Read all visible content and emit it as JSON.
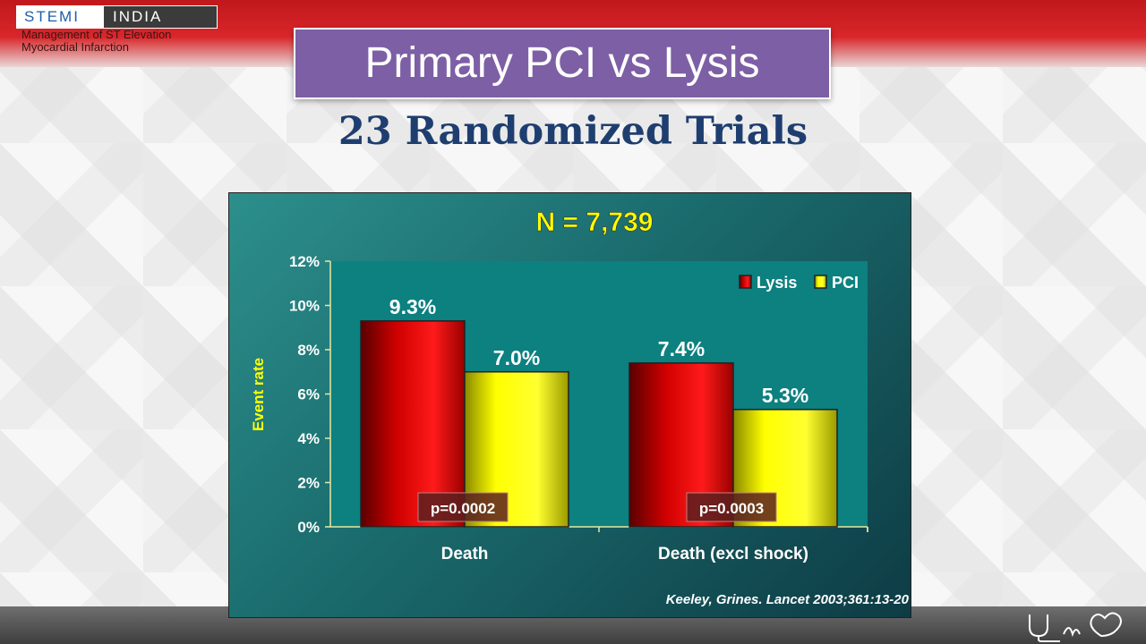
{
  "header": {
    "logo_left": "STEMI",
    "logo_right": "INDIA",
    "tagline_line1": "Management of ST Elevation",
    "tagline_line2": "Myocardial Infarction"
  },
  "title": "Primary PCI vs Lysis",
  "subtitle": "23 Randomized Trials",
  "colors": {
    "title_bg": "#7d5fa5",
    "subtitle": "#1f3e70",
    "lysis": "#e00000",
    "pci": "#ffff00",
    "chart_text_yellow": "#ffff00"
  },
  "chart_data": {
    "type": "bar",
    "title": "N = 7,739",
    "ylabel": "Event rate",
    "xlabel": "",
    "ylim": [
      0,
      12
    ],
    "yticks": [
      "0%",
      "2%",
      "4%",
      "6%",
      "8%",
      "10%",
      "12%"
    ],
    "categories": [
      "Death",
      "Death (excl shock)"
    ],
    "series": [
      {
        "name": "Lysis",
        "values": [
          9.3,
          7.4
        ],
        "labels": [
          "9.3%",
          "7.4%"
        ]
      },
      {
        "name": "PCI",
        "values": [
          7.0,
          5.3
        ],
        "labels": [
          "7.0%",
          "5.3%"
        ]
      }
    ],
    "pvalues": [
      "p=0.0002",
      "p=0.0003"
    ],
    "legend_position": "top-right",
    "grid": false,
    "citation": "Keeley, Grines. Lancet 2003;361:13-20"
  }
}
